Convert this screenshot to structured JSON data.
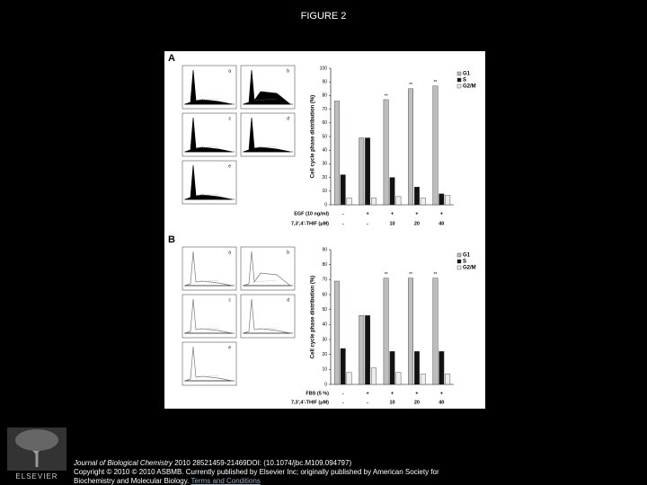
{
  "title": "FIGURE 2",
  "figure": {
    "panels": [
      {
        "letter": "A",
        "histograms": [
          "a",
          "b",
          "c",
          "d",
          "e"
        ]
      },
      {
        "letter": "B",
        "histograms": [
          "a",
          "b",
          "c",
          "d",
          "e"
        ]
      }
    ]
  },
  "chart_data": [
    {
      "type": "bar",
      "ylabel": "Cell cycle phase distribution (%)",
      "ylim": [
        0,
        100
      ],
      "yticks": [
        0,
        10,
        20,
        30,
        40,
        50,
        60,
        70,
        80,
        90,
        100
      ],
      "condition_rows": [
        {
          "label": "EGF (10 ng/ml)",
          "values": [
            "-",
            "+",
            "+",
            "+",
            "+"
          ]
        },
        {
          "label": "7,3',4'-THIF (μM)",
          "values": [
            "-",
            "-",
            "10",
            "20",
            "40"
          ]
        }
      ],
      "series": [
        {
          "name": "G1",
          "color": "#bdbdbd",
          "values": [
            76,
            49,
            77,
            85,
            87
          ]
        },
        {
          "name": "S",
          "color": "#111111",
          "values": [
            22,
            49,
            20,
            13,
            8
          ]
        },
        {
          "name": "G2/M",
          "color": "#eeeeee",
          "values": [
            5,
            5,
            6,
            5,
            7
          ]
        }
      ],
      "annotations": [
        {
          "text": "**",
          "category": 2,
          "series": 0
        },
        {
          "text": "**",
          "category": 3,
          "series": 0
        },
        {
          "text": "**",
          "category": 4,
          "series": 0
        }
      ],
      "legend": "top-right"
    },
    {
      "type": "bar",
      "ylabel": "Cell cycle phase distribution (%)",
      "ylim": [
        0,
        90
      ],
      "yticks": [
        0,
        10,
        20,
        30,
        40,
        50,
        60,
        70,
        80,
        90
      ],
      "condition_rows": [
        {
          "label": "FBS (5 %)",
          "values": [
            "-",
            "+",
            "+",
            "+",
            "+"
          ]
        },
        {
          "label": "7,3',4'-THIF (μM)",
          "values": [
            "-",
            "-",
            "10",
            "20",
            "40"
          ]
        }
      ],
      "series": [
        {
          "name": "G1",
          "color": "#bdbdbd",
          "values": [
            69,
            46,
            71,
            71,
            71
          ]
        },
        {
          "name": "S",
          "color": "#111111",
          "values": [
            24,
            46,
            22,
            22,
            22
          ]
        },
        {
          "name": "G2/M",
          "color": "#eeeeee",
          "values": [
            8,
            11,
            8,
            7,
            7
          ]
        }
      ],
      "annotations": [
        {
          "text": "**",
          "category": 2,
          "series": 0
        },
        {
          "text": "**",
          "category": 3,
          "series": 0
        },
        {
          "text": "**",
          "category": 4,
          "series": 0
        }
      ],
      "legend": "top-right"
    }
  ],
  "footer": {
    "publisher": "ELSEVIER",
    "journal": "Journal of Biological Chemistry",
    "citation": "2010 28521459-21469DOI: (10.1074/jbc.M109.094797)",
    "copyright": "Copyright © 2010 © 2010 ASBMB. Currently published by Elsevier Inc; originally published by American Society for Biochemistry and Molecular Biology.",
    "link": "Terms and Conditions"
  }
}
